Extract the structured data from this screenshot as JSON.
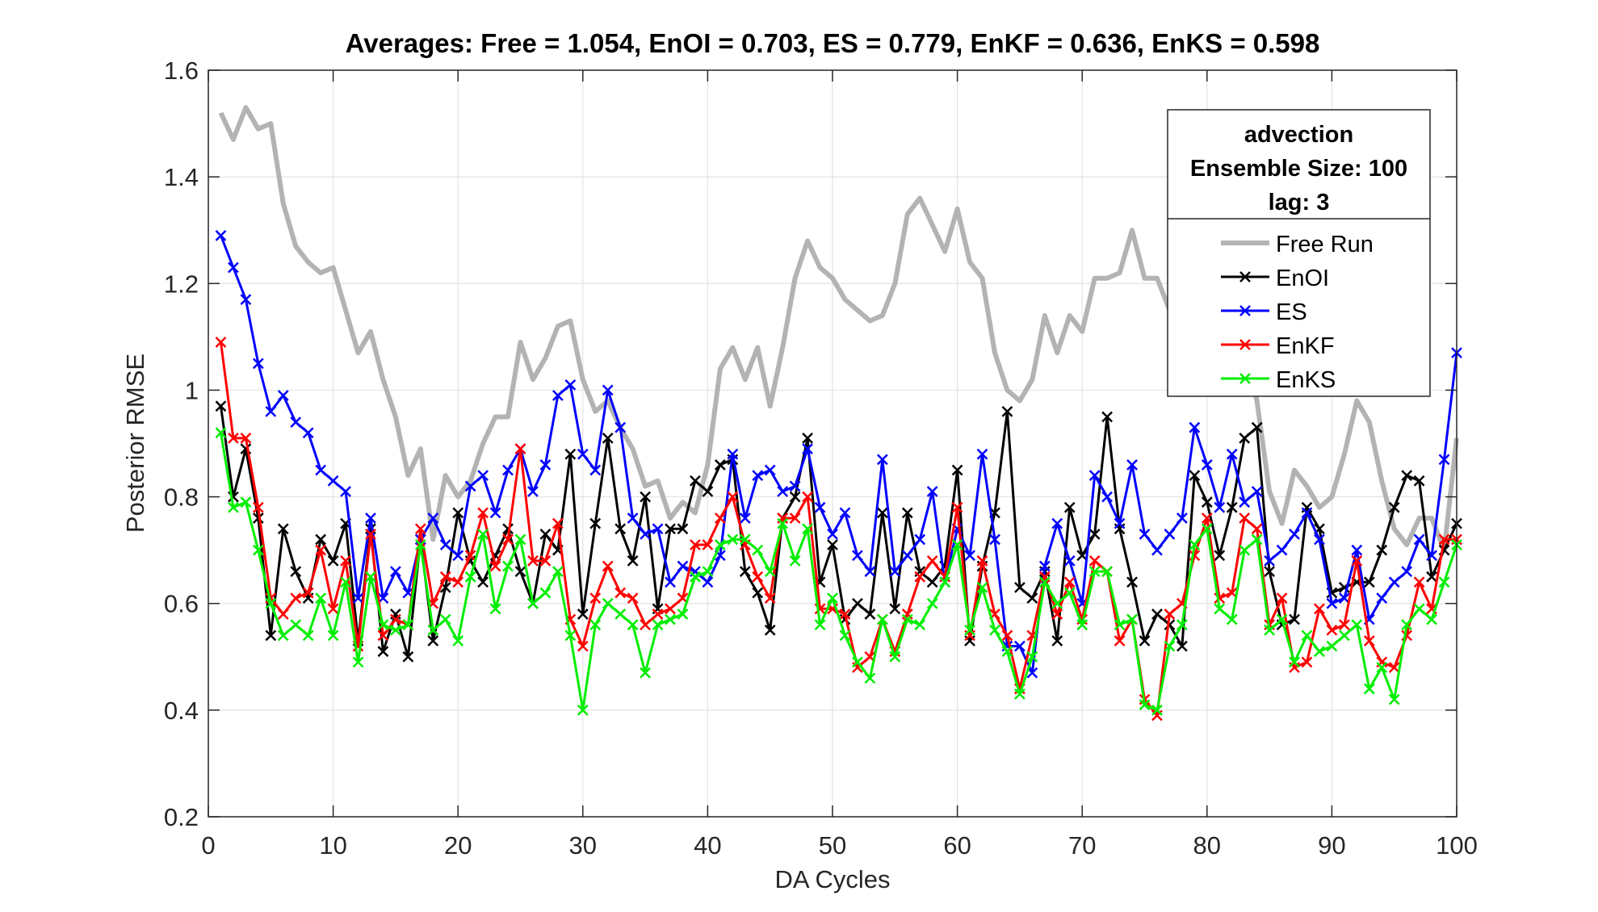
{
  "chart_data": {
    "type": "line",
    "title": "Averages: Free = 1.054, EnOI = 0.703, ES = 0.779, EnKF = 0.636, EnKS = 0.598",
    "xlabel": "DA Cycles",
    "ylabel": "Posterior RMSE",
    "xlim": [
      0,
      100
    ],
    "ylim": [
      0.2,
      1.6
    ],
    "xticks": [
      0,
      10,
      20,
      30,
      40,
      50,
      60,
      70,
      80,
      90,
      100
    ],
    "yticks": [
      0.2,
      0.4,
      0.6,
      0.8,
      1,
      1.2,
      1.4,
      1.6
    ],
    "ytick_labels": [
      "0.2",
      "0.4",
      "0.6",
      "0.8",
      "1",
      "1.2",
      "1.4",
      "1.6"
    ],
    "grid": true,
    "legend_position": "top-right",
    "legend_header": [
      "advection",
      "Ensemble Size: 100",
      "lag: 3"
    ],
    "series": [
      {
        "name": "Free Run",
        "color": "#b3b3b3",
        "marker": "none",
        "width": 6,
        "values": [
          1.52,
          1.47,
          1.53,
          1.49,
          1.5,
          1.35,
          1.27,
          1.24,
          1.22,
          1.23,
          1.15,
          1.07,
          1.11,
          1.02,
          0.95,
          0.84,
          0.89,
          0.72,
          0.84,
          0.8,
          0.83,
          0.9,
          0.95,
          0.95,
          1.09,
          1.02,
          1.06,
          1.12,
          1.13,
          1.02,
          0.96,
          0.98,
          0.93,
          0.89,
          0.82,
          0.83,
          0.76,
          0.79,
          0.77,
          0.86,
          1.04,
          1.08,
          1.02,
          1.08,
          0.97,
          1.08,
          1.21,
          1.28,
          1.23,
          1.21,
          1.17,
          1.15,
          1.13,
          1.14,
          1.2,
          1.33,
          1.36,
          1.31,
          1.26,
          1.34,
          1.24,
          1.21,
          1.07,
          1.0,
          0.98,
          1.02,
          1.14,
          1.07,
          1.14,
          1.11,
          1.21,
          1.21,
          1.22,
          1.3,
          1.21,
          1.21,
          1.15,
          1.14,
          1.15,
          1.14,
          1.13,
          1.18,
          1.08,
          0.98,
          0.81,
          0.75,
          0.85,
          0.82,
          0.78,
          0.8,
          0.88,
          0.98,
          0.94,
          0.83,
          0.74,
          0.71,
          0.76,
          0.76,
          0.7,
          0.91
        ]
      },
      {
        "name": "EnOI",
        "color": "#000000",
        "marker": "x",
        "width": 3,
        "values": [
          0.97,
          0.8,
          0.89,
          0.76,
          0.54,
          0.74,
          0.66,
          0.61,
          0.72,
          0.68,
          0.75,
          0.53,
          0.74,
          0.51,
          0.58,
          0.5,
          0.72,
          0.53,
          0.63,
          0.77,
          0.68,
          0.64,
          0.69,
          0.74,
          0.66,
          0.6,
          0.73,
          0.7,
          0.88,
          0.58,
          0.75,
          0.91,
          0.74,
          0.68,
          0.8,
          0.59,
          0.74,
          0.74,
          0.83,
          0.81,
          0.86,
          0.87,
          0.66,
          0.62,
          0.55,
          0.76,
          0.8,
          0.91,
          0.64,
          0.71,
          0.57,
          0.6,
          0.58,
          0.77,
          0.59,
          0.77,
          0.66,
          0.64,
          0.67,
          0.85,
          0.53,
          0.67,
          0.77,
          0.96,
          0.63,
          0.61,
          0.66,
          0.53,
          0.78,
          0.69,
          0.73,
          0.95,
          0.74,
          0.64,
          0.53,
          0.58,
          0.56,
          0.52,
          0.84,
          0.79,
          0.69,
          0.78,
          0.91,
          0.93,
          0.66,
          0.56,
          0.57,
          0.78,
          0.74,
          0.62,
          0.63,
          0.64,
          0.64,
          0.7,
          0.78,
          0.84,
          0.83,
          0.65,
          0.7,
          0.75
        ]
      },
      {
        "name": "ES",
        "color": "#0000ff",
        "marker": "x",
        "width": 3,
        "values": [
          1.29,
          1.23,
          1.17,
          1.05,
          0.96,
          0.99,
          0.94,
          0.92,
          0.85,
          0.83,
          0.81,
          0.61,
          0.76,
          0.61,
          0.66,
          0.62,
          0.72,
          0.76,
          0.71,
          0.69,
          0.82,
          0.84,
          0.77,
          0.85,
          0.89,
          0.81,
          0.86,
          0.99,
          1.01,
          0.88,
          0.85,
          1.0,
          0.93,
          0.76,
          0.73,
          0.74,
          0.64,
          0.67,
          0.66,
          0.64,
          0.69,
          0.88,
          0.76,
          0.84,
          0.85,
          0.81,
          0.82,
          0.89,
          0.78,
          0.73,
          0.77,
          0.69,
          0.66,
          0.87,
          0.66,
          0.69,
          0.72,
          0.81,
          0.64,
          0.74,
          0.69,
          0.88,
          0.72,
          0.52,
          0.52,
          0.47,
          0.67,
          0.75,
          0.68,
          0.6,
          0.84,
          0.8,
          0.75,
          0.86,
          0.73,
          0.7,
          0.73,
          0.76,
          0.93,
          0.86,
          0.78,
          0.88,
          0.79,
          0.81,
          0.68,
          0.7,
          0.73,
          0.77,
          0.72,
          0.6,
          0.61,
          0.7,
          0.57,
          0.61,
          0.64,
          0.66,
          0.72,
          0.69,
          0.87,
          1.07
        ]
      },
      {
        "name": "EnKF",
        "color": "#ff0000",
        "marker": "x",
        "width": 3,
        "values": [
          1.09,
          0.91,
          0.91,
          0.78,
          0.61,
          0.58,
          0.61,
          0.62,
          0.7,
          0.59,
          0.68,
          0.52,
          0.73,
          0.54,
          0.57,
          0.56,
          0.74,
          0.6,
          0.65,
          0.64,
          0.69,
          0.77,
          0.67,
          0.72,
          0.89,
          0.68,
          0.68,
          0.75,
          0.57,
          0.52,
          0.61,
          0.67,
          0.62,
          0.61,
          0.56,
          0.58,
          0.59,
          0.61,
          0.71,
          0.71,
          0.76,
          0.8,
          0.71,
          0.65,
          0.61,
          0.76,
          0.76,
          0.8,
          0.59,
          0.59,
          0.58,
          0.48,
          0.5,
          0.57,
          0.51,
          0.58,
          0.65,
          0.68,
          0.65,
          0.78,
          0.54,
          0.68,
          0.58,
          0.54,
          0.44,
          0.54,
          0.65,
          0.58,
          0.64,
          0.57,
          0.68,
          0.66,
          0.53,
          0.57,
          0.42,
          0.39,
          0.58,
          0.6,
          0.69,
          0.76,
          0.61,
          0.62,
          0.76,
          0.74,
          0.56,
          0.61,
          0.48,
          0.49,
          0.59,
          0.55,
          0.56,
          0.68,
          0.53,
          0.49,
          0.48,
          0.54,
          0.64,
          0.59,
          0.72,
          0.72
        ]
      },
      {
        "name": "EnKS",
        "color": "#00ee00",
        "marker": "x",
        "width": 3,
        "values": [
          0.92,
          0.78,
          0.79,
          0.7,
          0.6,
          0.54,
          0.56,
          0.54,
          0.61,
          0.54,
          0.64,
          0.49,
          0.65,
          0.56,
          0.55,
          0.56,
          0.71,
          0.55,
          0.57,
          0.53,
          0.65,
          0.73,
          0.59,
          0.67,
          0.72,
          0.6,
          0.62,
          0.66,
          0.54,
          0.4,
          0.56,
          0.6,
          0.58,
          0.56,
          0.47,
          0.56,
          0.57,
          0.58,
          0.65,
          0.66,
          0.71,
          0.72,
          0.72,
          0.7,
          0.66,
          0.75,
          0.68,
          0.74,
          0.56,
          0.61,
          0.54,
          0.49,
          0.46,
          0.57,
          0.5,
          0.57,
          0.56,
          0.6,
          0.64,
          0.71,
          0.55,
          0.63,
          0.55,
          0.51,
          0.43,
          0.5,
          0.64,
          0.6,
          0.62,
          0.56,
          0.66,
          0.66,
          0.56,
          0.57,
          0.41,
          0.4,
          0.52,
          0.56,
          0.71,
          0.74,
          0.59,
          0.57,
          0.7,
          0.72,
          0.55,
          0.57,
          0.49,
          0.54,
          0.51,
          0.52,
          0.54,
          0.56,
          0.44,
          0.48,
          0.42,
          0.56,
          0.59,
          0.57,
          0.64,
          0.71
        ]
      }
    ]
  }
}
